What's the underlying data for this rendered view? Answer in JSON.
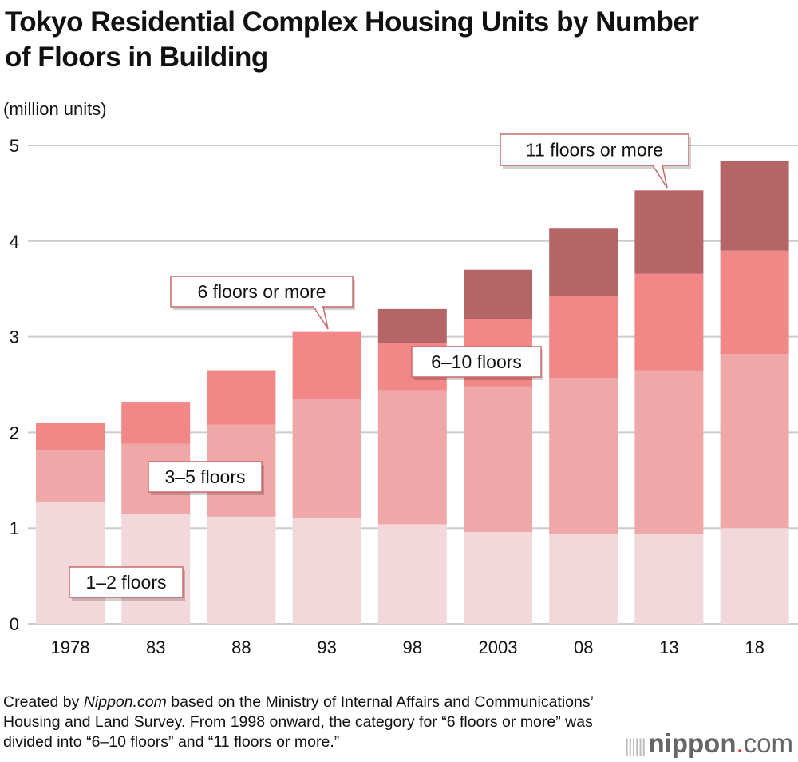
{
  "chart_data": {
    "type": "bar",
    "stacked": true,
    "title": "Tokyo Residential Complex Housing Units by Number of Floors in Building",
    "ylabel": "(million units)",
    "xlabel": "",
    "ylim": [
      0,
      5
    ],
    "yticks": [
      0,
      1,
      2,
      3,
      4,
      5
    ],
    "grid": true,
    "categories": [
      "1978",
      "83",
      "88",
      "93",
      "98",
      "2003",
      "08",
      "13",
      "18"
    ],
    "series": [
      {
        "name": "1–2 floors",
        "color": "#f2d8da",
        "values": [
          1.27,
          1.15,
          1.12,
          1.11,
          1.04,
          0.96,
          0.94,
          0.94,
          1.0
        ]
      },
      {
        "name": "3–5 floors",
        "color": "#f0a7a7",
        "values": [
          0.54,
          0.73,
          0.96,
          1.24,
          1.4,
          1.52,
          1.63,
          1.71,
          1.82
        ]
      },
      {
        "name": "6 floors or more / 6–10 floors",
        "color": "#f18787",
        "values": [
          0.29,
          0.44,
          0.57,
          0.7,
          0.49,
          0.7,
          0.86,
          1.01,
          1.08
        ]
      },
      {
        "name": "11 floors or more",
        "color": "#b56566",
        "values": [
          0,
          0,
          0,
          0,
          0.36,
          0.52,
          0.7,
          0.87,
          0.94
        ]
      }
    ],
    "annotations": [
      "11 floors or more",
      "6 floors or more",
      "6–10 floors",
      "3–5 floors",
      "1–2 floors"
    ]
  },
  "title": "Tokyo Residential Complex Housing Units by Number of Floors in Building",
  "unit": "(million units)",
  "note_prefix": "Created by ",
  "note_site": "Nippon.com",
  "note_rest": " based on the Ministry of Internal Affairs and Communications’ Housing and Land Survey. From 1998 onward, the category for “6 floors or more” was divided into “6–10 floors” and “11 floors or more.”",
  "logo": {
    "main": "nippon",
    "dot": ".",
    "suffix": "com"
  }
}
